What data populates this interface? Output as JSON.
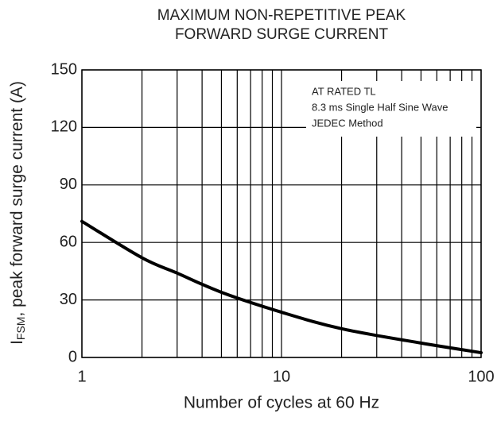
{
  "chart_data": {
    "type": "line",
    "title": [
      "MAXIMUM NON-REPETITIVE PEAK",
      "FORWARD SURGE CURRENT"
    ],
    "xlabel": "Number of cycles at 60 Hz",
    "ylabel": [
      "I",
      "FSM",
      ", peak forward surge current (A)"
    ],
    "annotation": [
      "AT RATED TL",
      "8.3 ms Single Half Sine Wave",
      "JEDEC Method"
    ],
    "x": [
      1,
      2,
      3,
      5,
      10,
      20,
      50,
      100
    ],
    "series": [
      {
        "name": "IFSM",
        "color": "#000000",
        "values": [
          71,
          52,
          44,
          34,
          23.6,
          15,
          7.5,
          2.5
        ]
      }
    ],
    "xscale": "log",
    "xlim": [
      1,
      100
    ],
    "xticks": [
      1,
      10,
      100
    ],
    "xgrid_minor": [
      2,
      3,
      4,
      5,
      6,
      7,
      8,
      9,
      20,
      30,
      40,
      50,
      60,
      70,
      80,
      90
    ],
    "ylim": [
      0,
      150
    ],
    "yticks": [
      0,
      30,
      60,
      90,
      120,
      150
    ],
    "grid": true
  }
}
